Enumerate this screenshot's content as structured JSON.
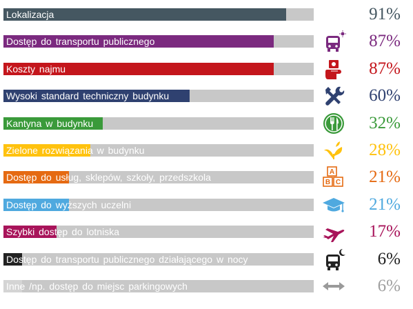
{
  "chart_data": {
    "type": "bar",
    "orientation": "horizontal",
    "xlim": [
      0,
      100
    ],
    "unit": "%",
    "categories": [
      "Lokalizacja",
      "Dostęp do transportu publicznego",
      "Koszty najmu",
      "Wysoki standard techniczny budynku",
      "Kantyna w budynku",
      "Zielone rozwiązania w budynku",
      "Dostęp do usług, sklepów, szkoły, przedszkola",
      "Dostęp do wyższych uczelni",
      "Szybki dostęp do lotniska",
      "Dostęp do transportu publicznego działającego w nocy",
      "Inne /np. dostęp do miejsc parkingowych"
    ],
    "values": [
      91,
      87,
      87,
      60,
      32,
      28,
      21,
      21,
      17,
      6,
      6
    ],
    "value_labels": [
      "91%",
      "87%",
      "87%",
      "60%",
      "32%",
      "28%",
      "21%",
      "21%",
      "17%",
      "6%",
      "6%"
    ],
    "colors": [
      "#455761",
      "#7b2a7f",
      "#c4161c",
      "#2f4170",
      "#3a9a3a",
      "#ffc20e",
      "#e56a12",
      "#4fa9df",
      "#a8145a",
      "#222222",
      "#d4d4d4"
    ],
    "icons": [
      "",
      "bus-sun-icon",
      "hand-money-icon",
      "wrench-screwdriver-icon",
      "fork-knife-icon",
      "leaf-sprout-icon",
      "abc-blocks-icon",
      "graduation-cap-icon",
      "airplane-icon",
      "bus-moon-icon",
      "double-arrow-icon"
    ],
    "track_color": "#c8c8c8"
  }
}
